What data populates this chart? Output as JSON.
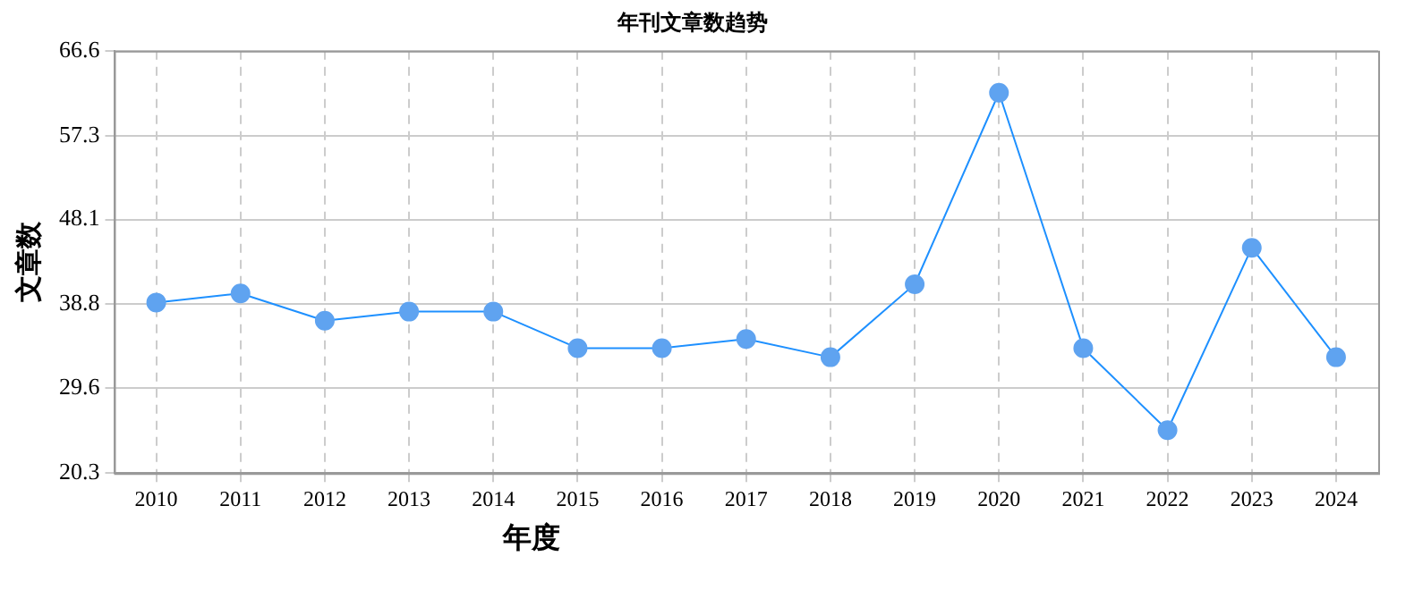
{
  "chart_data": {
    "type": "line",
    "title": "年刊文章数趋势",
    "xlabel": "年度",
    "ylabel": "文章数",
    "categories": [
      "2010",
      "2011",
      "2012",
      "2013",
      "2014",
      "2015",
      "2016",
      "2017",
      "2018",
      "2019",
      "2020",
      "2021",
      "2022",
      "2023",
      "2024"
    ],
    "series": [
      {
        "color": "#1e90ff",
        "values": [
          39,
          40,
          37,
          38,
          38,
          34,
          34,
          35,
          33,
          41,
          62,
          34,
          25,
          45,
          33
        ]
      }
    ],
    "ylim": [
      20.3,
      66.6
    ],
    "yticks": [
      20.3,
      29.6,
      38.8,
      48.1,
      57.3,
      66.6
    ],
    "grid": true,
    "marker": "circle",
    "line_style": "solid",
    "legend": false
  }
}
